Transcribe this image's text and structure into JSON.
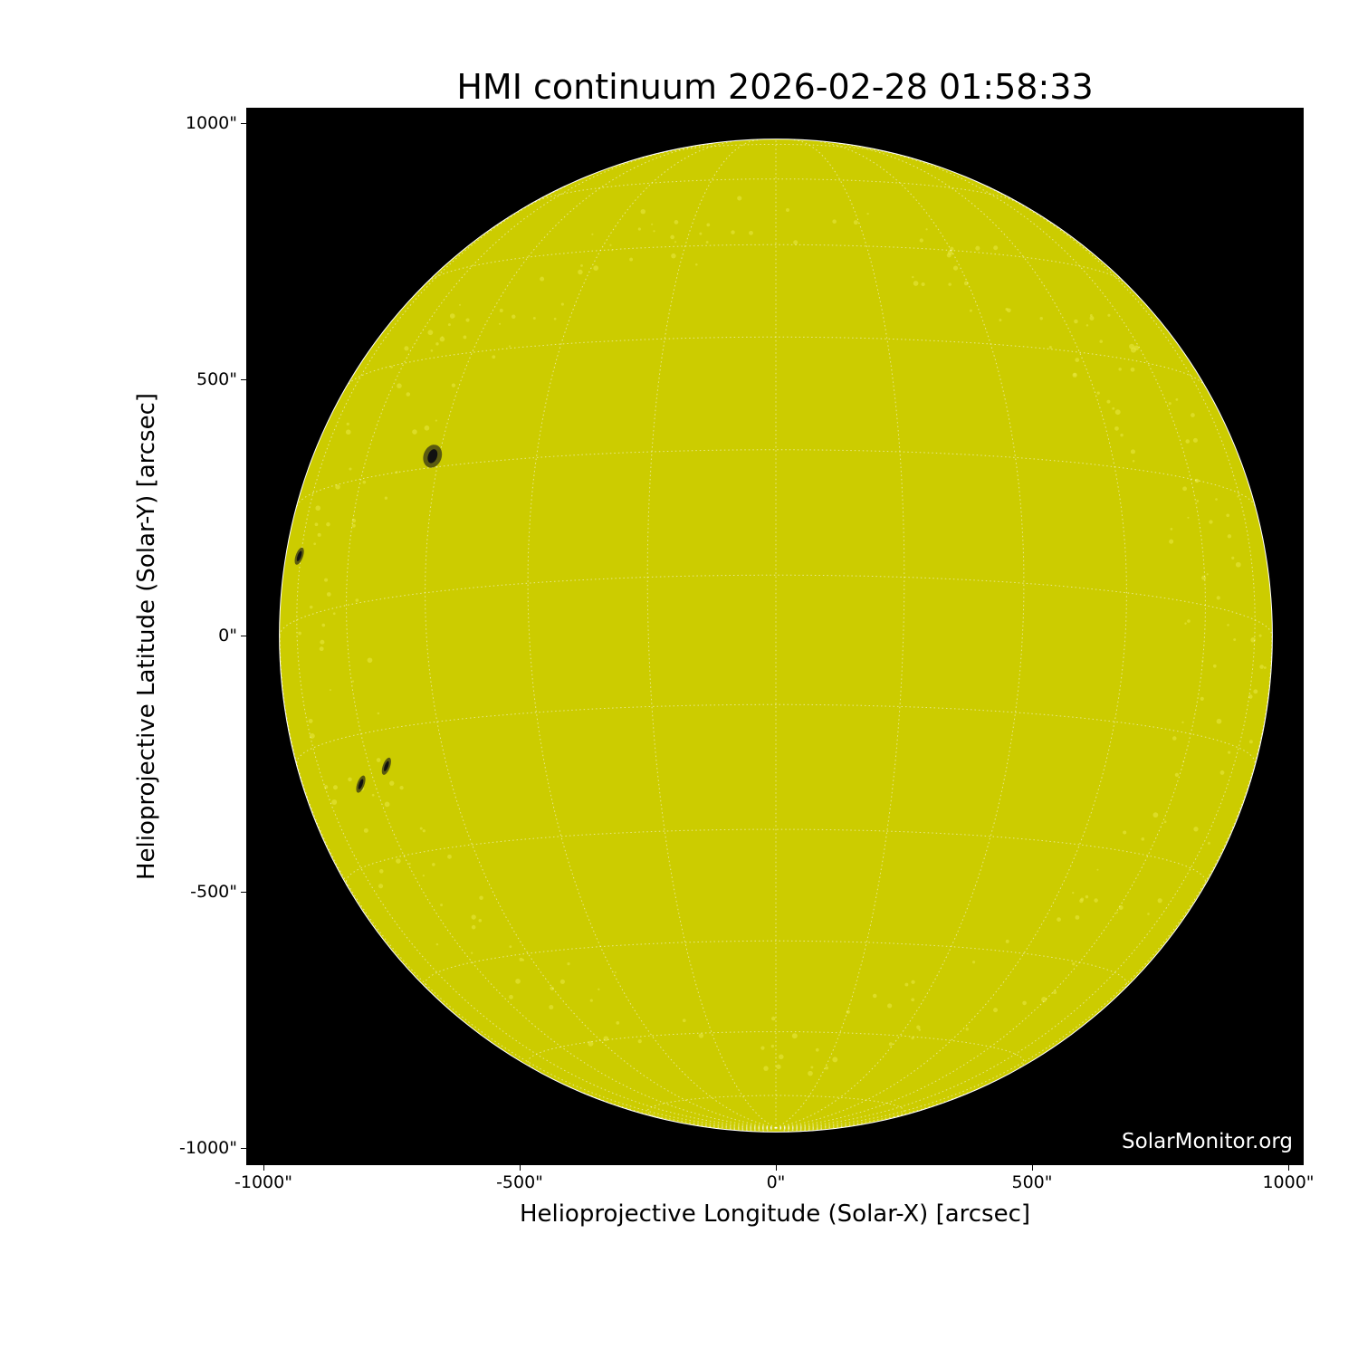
{
  "chart_data": {
    "type": "image",
    "title": "HMI continuum 2026-02-28 01:58:33",
    "xlabel": "Helioprojective Longitude (Solar-X) [arcsec]",
    "ylabel": "Helioprojective Latitude (Solar-Y) [arcsec]",
    "xlim": [
      -1030,
      1030
    ],
    "ylim": [
      -1030,
      1030
    ],
    "xticks": [
      "-1000\"",
      "-500\"",
      "0\"",
      "500\"",
      "1000\""
    ],
    "yticks": [
      "1000\"",
      "500\"",
      "0\"",
      "-500\"",
      "-1000\""
    ],
    "xtick_values": [
      -1000,
      -500,
      0,
      500,
      1000
    ],
    "ytick_values": [
      1000,
      500,
      0,
      -500,
      -1000
    ],
    "solar_radius_arcsec": 968,
    "grid_spacing_deg": 15,
    "disk_color": "#cccc00",
    "background_color": "#000000",
    "sunspots": [
      {
        "x": -670,
        "y": 350
      },
      {
        "x": -930,
        "y": 155
      },
      {
        "x": -810,
        "y": -290
      },
      {
        "x": -760,
        "y": -255
      }
    ],
    "watermark": "SolarMonitor.org"
  }
}
